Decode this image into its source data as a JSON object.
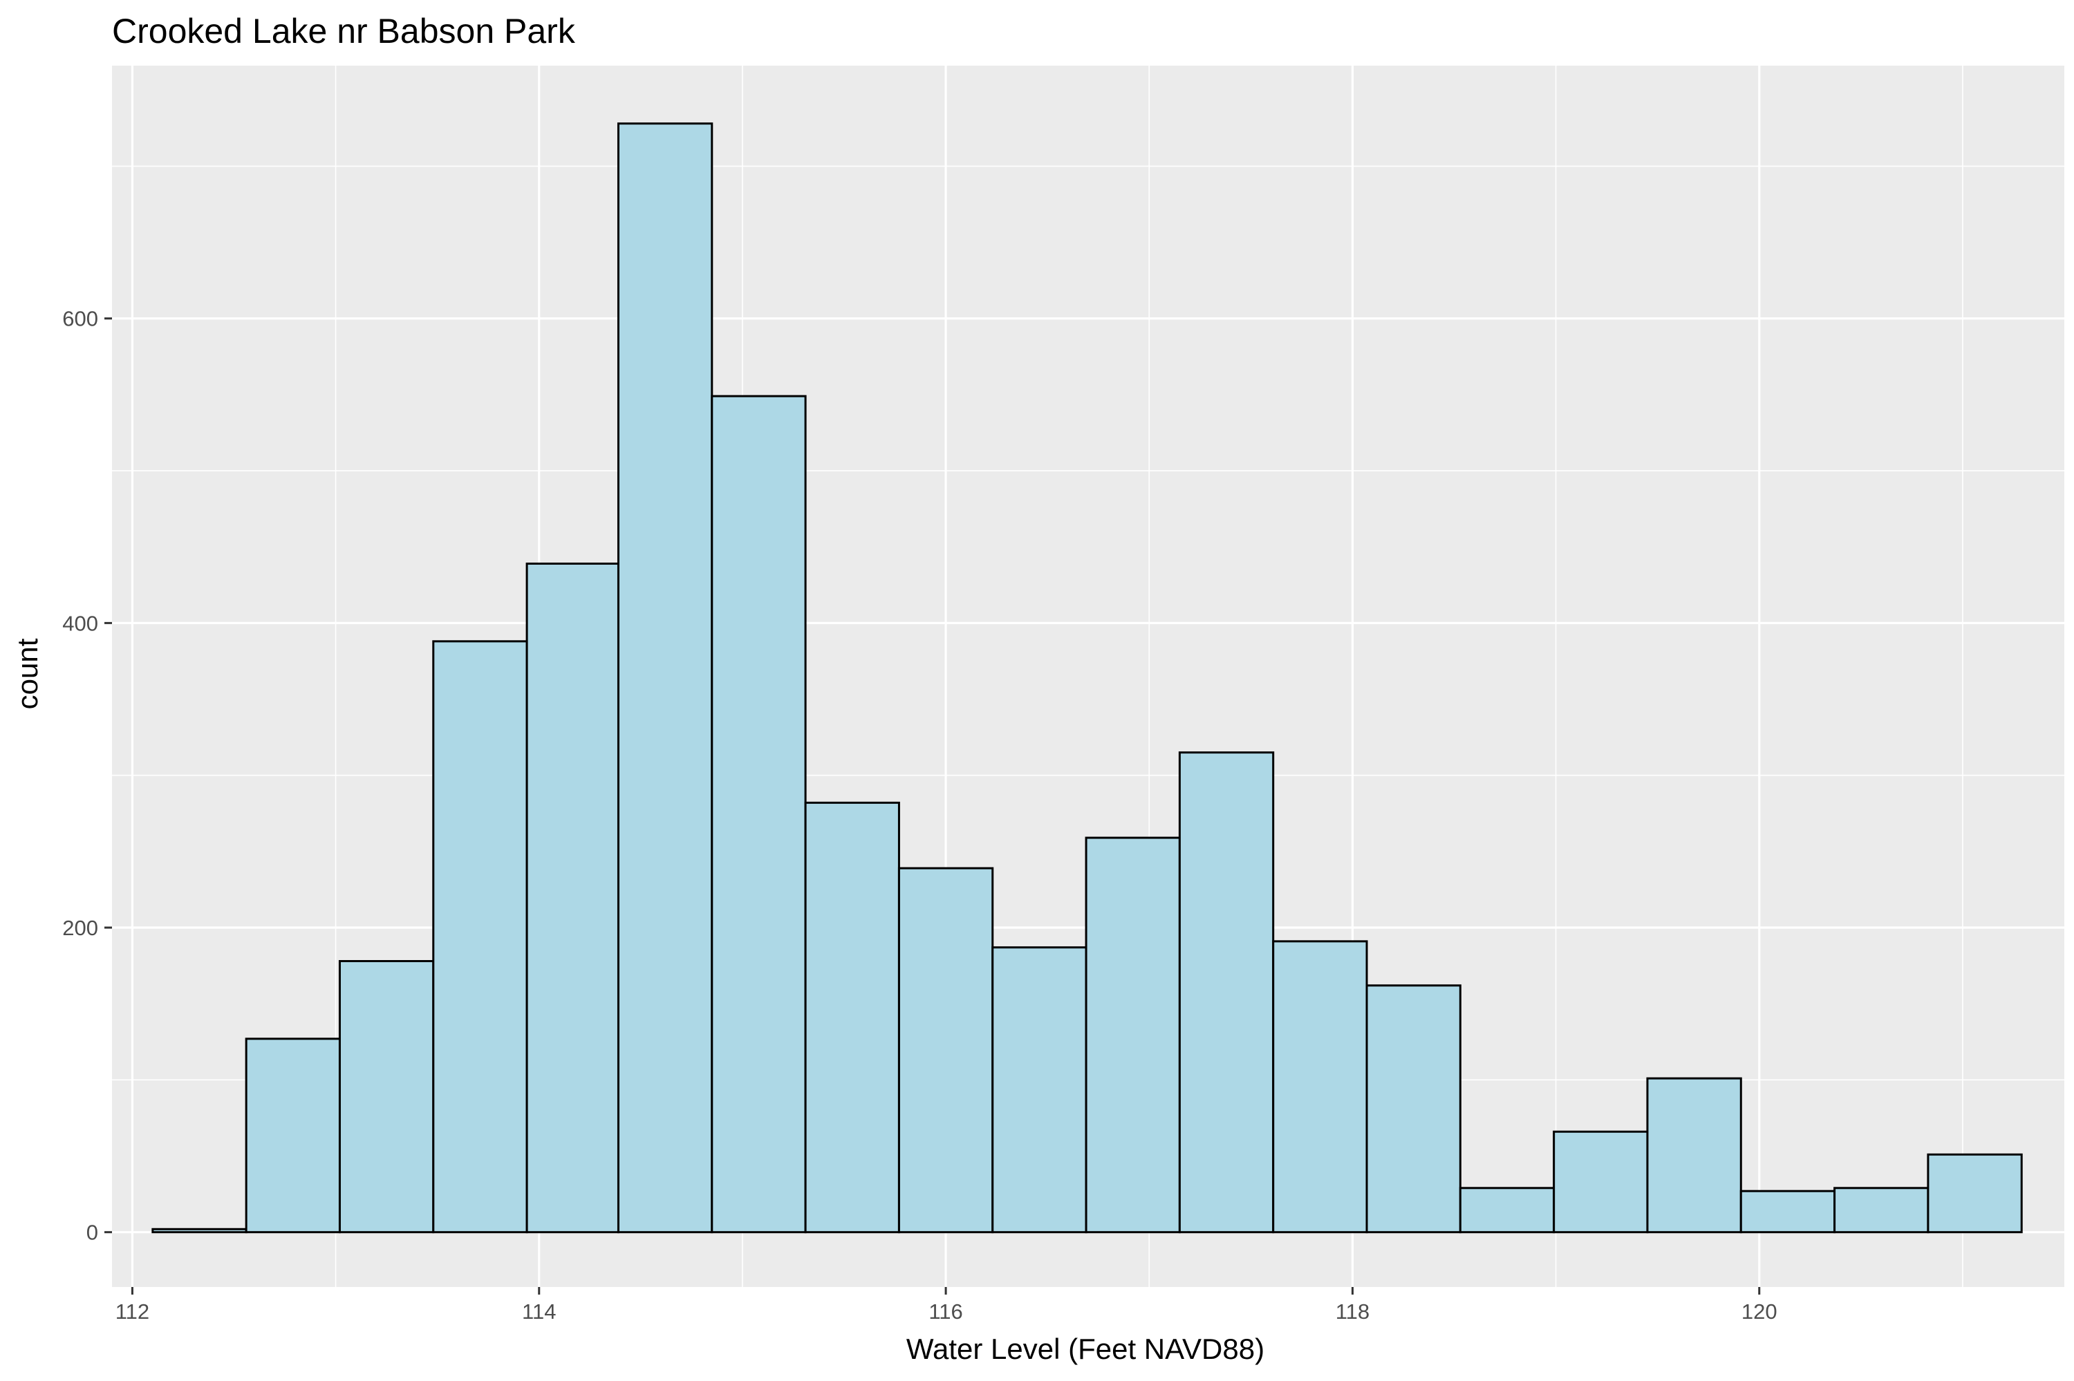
{
  "chart_data": {
    "type": "bar",
    "subtype": "histogram",
    "title": "Crooked Lake nr Babson Park",
    "xlabel": "Water Level (Feet NAVD88)",
    "ylabel": "count",
    "xlim": [
      111.9,
      121.5
    ],
    "ylim": [
      -36,
      766
    ],
    "x_ticks": [
      112,
      114,
      116,
      118,
      120
    ],
    "y_ticks": [
      0,
      200,
      400,
      600
    ],
    "x_minor_ticks": [
      113,
      115,
      117,
      119,
      121
    ],
    "y_minor_ticks": [
      100,
      300,
      500,
      700
    ],
    "bin_width": 0.459,
    "bins": [
      {
        "x0": 112.1,
        "x1": 112.56,
        "count": 2
      },
      {
        "x0": 112.56,
        "x1": 113.02,
        "count": 127
      },
      {
        "x0": 113.02,
        "x1": 113.48,
        "count": 178
      },
      {
        "x0": 113.48,
        "x1": 113.94,
        "count": 388
      },
      {
        "x0": 113.94,
        "x1": 114.39,
        "count": 439
      },
      {
        "x0": 114.39,
        "x1": 114.85,
        "count": 728
      },
      {
        "x0": 114.85,
        "x1": 115.31,
        "count": 549
      },
      {
        "x0": 115.31,
        "x1": 115.77,
        "count": 282
      },
      {
        "x0": 115.77,
        "x1": 116.23,
        "count": 239
      },
      {
        "x0": 116.23,
        "x1": 116.69,
        "count": 187
      },
      {
        "x0": 116.69,
        "x1": 117.15,
        "count": 259
      },
      {
        "x0": 117.15,
        "x1": 117.61,
        "count": 315
      },
      {
        "x0": 117.61,
        "x1": 118.07,
        "count": 191
      },
      {
        "x0": 118.07,
        "x1": 118.53,
        "count": 162
      },
      {
        "x0": 118.53,
        "x1": 118.99,
        "count": 29
      },
      {
        "x0": 118.99,
        "x1": 119.45,
        "count": 66
      },
      {
        "x0": 119.45,
        "x1": 119.91,
        "count": 101
      },
      {
        "x0": 119.91,
        "x1": 120.37,
        "count": 27
      },
      {
        "x0": 120.37,
        "x1": 120.83,
        "count": 29
      },
      {
        "x0": 120.83,
        "x1": 121.29,
        "count": 51
      }
    ],
    "grid": true,
    "colors": {
      "panel_background": "#ebebeb",
      "grid": "#ffffff",
      "bar_fill": "#add8e6",
      "bar_outline": "#000000",
      "tick_label": "#4d4d4d",
      "tick_mark": "#333333"
    }
  }
}
